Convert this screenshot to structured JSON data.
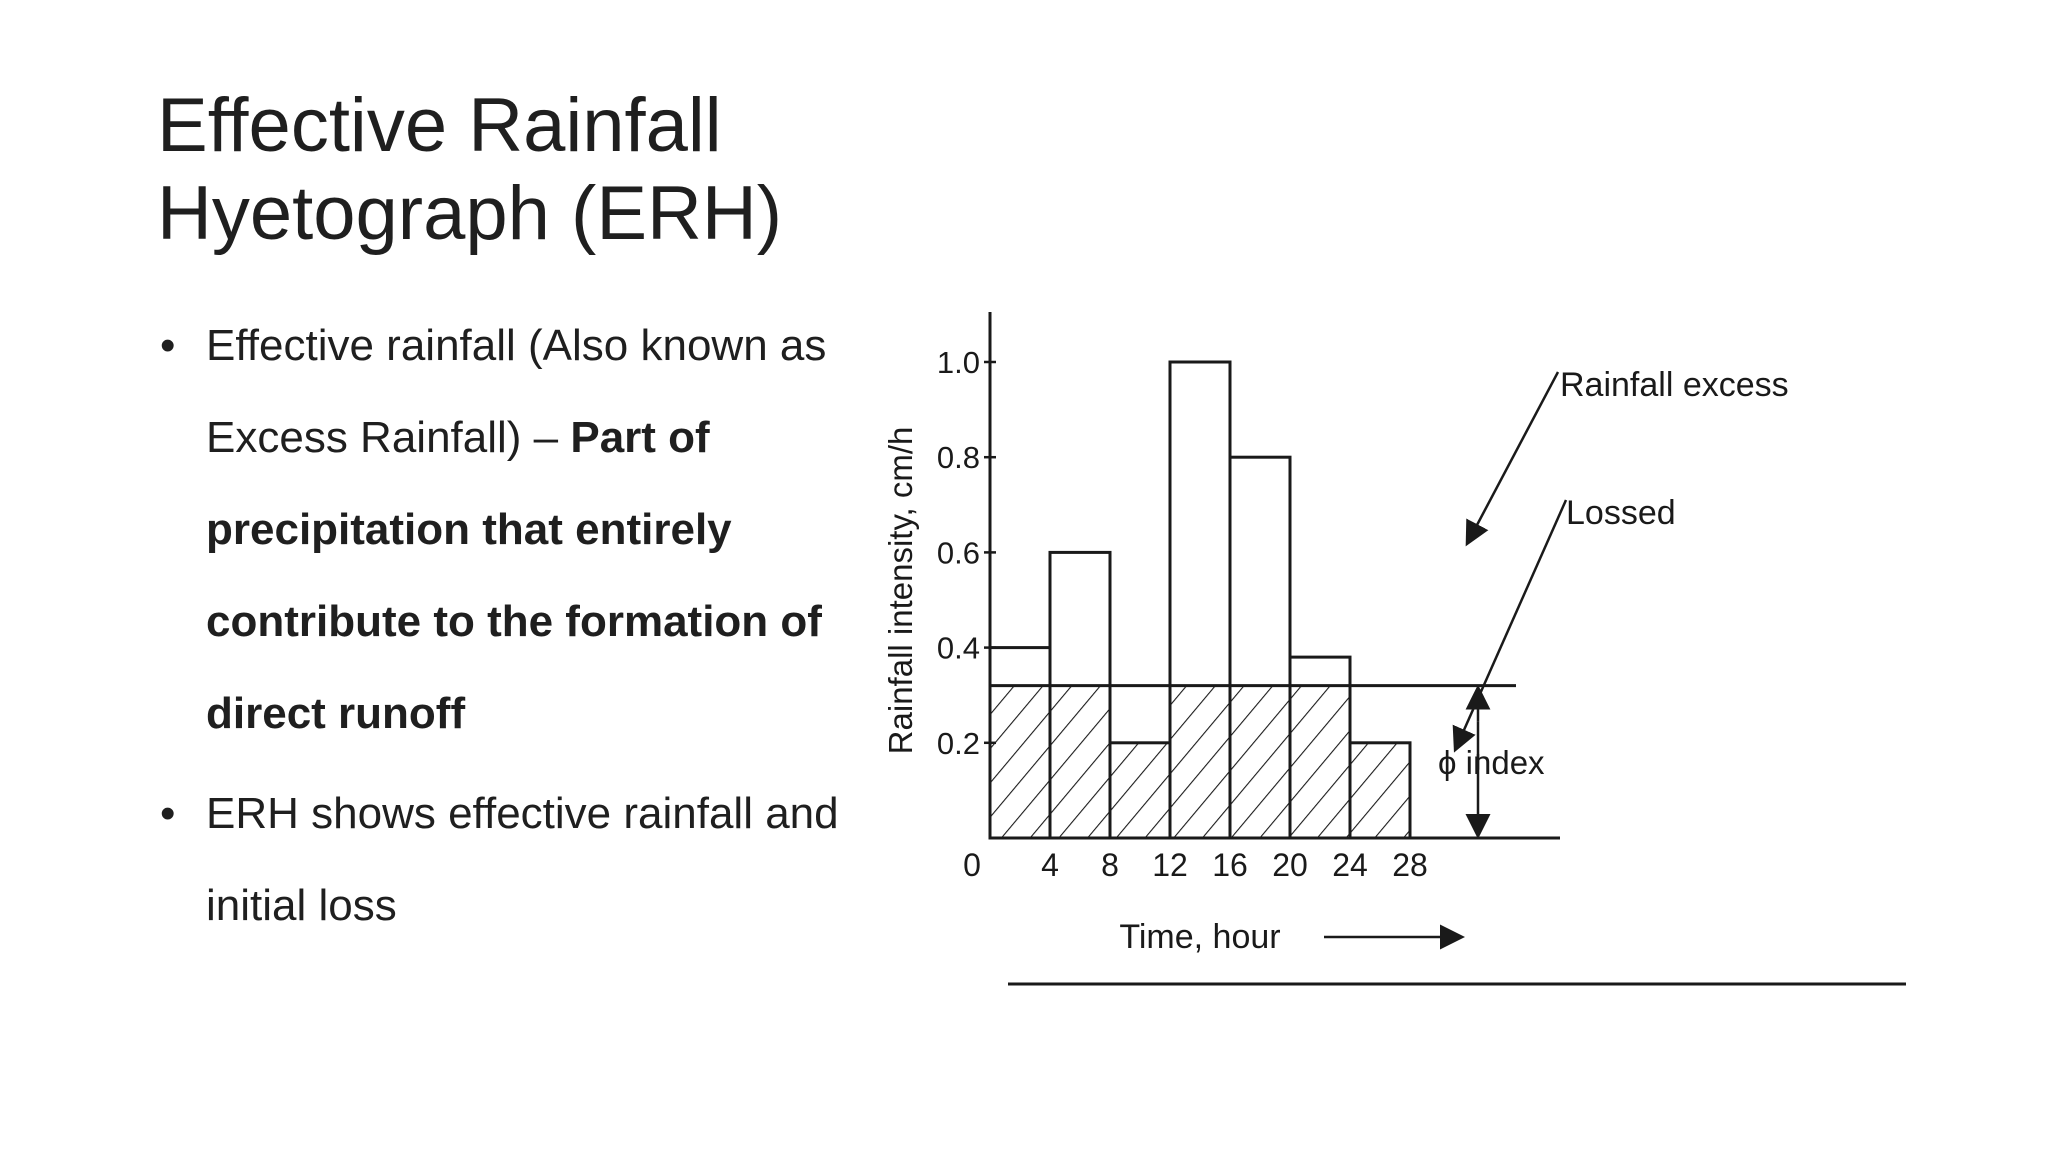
{
  "slide": {
    "title_line1": "Effective Rainfall",
    "title_line2": "Hyetograph (ERH)",
    "bullets": [
      {
        "text_plain": "Effective rainfall (Also known as Excess Rainfall) – ",
        "text_bold": "Part of precipitation that entirely contribute to the formation of direct runoff"
      },
      {
        "text_plain": "ERH shows effective rainfall and initial loss"
      }
    ],
    "bullet_glyph": "•"
  },
  "chart_data": {
    "type": "bar",
    "xlabel": "Time, hour",
    "ylabel": "Rainfall intensity, cm/h",
    "x_ticks": [
      "0",
      "4",
      "8",
      "12",
      "16",
      "20",
      "24",
      "28"
    ],
    "y_ticks": [
      "0",
      "0.2",
      "0.4",
      "0.6",
      "0.8",
      "1.0"
    ],
    "xlim": [
      0,
      28
    ],
    "ylim": [
      0,
      1.0
    ],
    "bin_edges": [
      0,
      4,
      8,
      12,
      16,
      20,
      24,
      28
    ],
    "values": [
      0.4,
      0.6,
      0.2,
      1.0,
      0.8,
      0.38,
      0.2
    ],
    "phi_index": 0.32,
    "annotations": {
      "excess_label": "Rainfall excess",
      "loss_label": "Lossed",
      "phi_label": "ϕ index"
    },
    "loss_fill": "hatched",
    "colors": {
      "ink": "#1a1a1a"
    }
  }
}
